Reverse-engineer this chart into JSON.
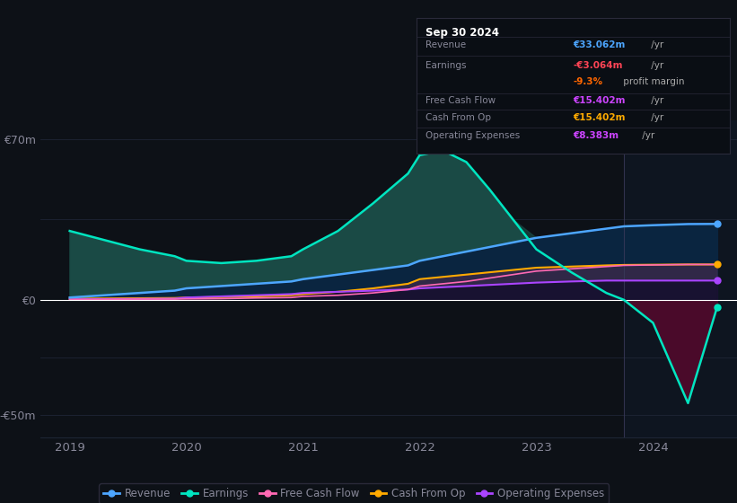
{
  "background_color": "#0d1117",
  "years": [
    2019.0,
    2019.3,
    2019.6,
    2019.9,
    2020.0,
    2020.3,
    2020.6,
    2020.9,
    2021.0,
    2021.3,
    2021.6,
    2021.9,
    2022.0,
    2022.2,
    2022.4,
    2022.6,
    2022.8,
    2023.0,
    2023.3,
    2023.6,
    2023.75,
    2024.0,
    2024.3,
    2024.55
  ],
  "revenue": [
    1,
    2,
    3,
    4,
    5,
    6,
    7,
    8,
    9,
    11,
    13,
    15,
    17,
    19,
    21,
    23,
    25,
    27,
    29,
    31,
    32,
    32.5,
    33.0,
    33.062
  ],
  "earnings": [
    30,
    26,
    22,
    19,
    17,
    16,
    17,
    19,
    22,
    30,
    42,
    55,
    63,
    65,
    60,
    48,
    35,
    22,
    12,
    3,
    0,
    -10,
    -45,
    -3.064
  ],
  "cash_from_op": [
    0.5,
    0.6,
    0.7,
    0.8,
    1.0,
    1.2,
    1.5,
    2.0,
    2.5,
    3.5,
    5,
    7,
    9,
    10,
    11,
    12,
    13,
    14,
    14.5,
    15,
    15.2,
    15.3,
    15.402,
    15.402
  ],
  "op_expenses": [
    0.2,
    0.3,
    0.4,
    0.5,
    1.0,
    1.5,
    2.0,
    2.5,
    3.0,
    3.5,
    4.0,
    4.5,
    5.0,
    5.5,
    6.0,
    6.5,
    7.0,
    7.5,
    8.0,
    8.383,
    8.383,
    8.383,
    8.383,
    8.383
  ],
  "free_cash_flow": [
    0.1,
    0.2,
    0.3,
    0.3,
    0.4,
    0.5,
    0.8,
    1.0,
    1.5,
    2.0,
    3.0,
    4.5,
    6.0,
    7.0,
    8.0,
    9.5,
    11.0,
    12.5,
    13.5,
    14.5,
    15.0,
    15.2,
    15.402,
    15.402
  ],
  "revenue_color": "#4da6ff",
  "earnings_color": "#00e5c0",
  "earnings_fill_pos": "#1a4a45",
  "earnings_fill_neg": "#4a0a2a",
  "revenue_fill": "#0a2540",
  "between_fill": "#0d2035",
  "cash_from_op_color": "#ffaa00",
  "op_expenses_color": "#aa44ff",
  "free_cash_flow_color": "#ff69b4",
  "grid_color": "#1e2535",
  "text_color": "#888899",
  "divider_x": 2023.75,
  "xlim_left": 2018.75,
  "xlim_right": 2024.72,
  "ylim": [
    -60,
    78
  ],
  "ytick_positions": [
    -50,
    0,
    70
  ],
  "ytick_labels": [
    "-€50m",
    "€0",
    "€70m"
  ],
  "xtick_positions": [
    2019,
    2020,
    2021,
    2022,
    2023,
    2024
  ],
  "xtick_labels": [
    "2019",
    "2020",
    "2021",
    "2022",
    "2023",
    "2024"
  ],
  "info_box": {
    "title": "Sep 30 2024",
    "rows": [
      {
        "label": "Revenue",
        "value": "€33.062m",
        "suffix": " /yr",
        "value_color": "#4da6ff",
        "label_color": "#888899"
      },
      {
        "label": "Earnings",
        "value": "-€3.064m",
        "suffix": " /yr",
        "value_color": "#ff4455",
        "label_color": "#888899"
      },
      {
        "label": "",
        "value": "-9.3%",
        "suffix": " profit margin",
        "value_color": "#ff6600",
        "label_color": "#888899"
      },
      {
        "label": "Free Cash Flow",
        "value": "€15.402m",
        "suffix": " /yr",
        "value_color": "#cc44ff",
        "label_color": "#888899"
      },
      {
        "label": "Cash From Op",
        "value": "€15.402m",
        "suffix": " /yr",
        "value_color": "#ffaa00",
        "label_color": "#888899"
      },
      {
        "label": "Operating Expenses",
        "value": "€8.383m",
        "suffix": " /yr",
        "value_color": "#cc44ff",
        "label_color": "#888899"
      }
    ]
  },
  "legend": [
    {
      "label": "Revenue",
      "color": "#4da6ff"
    },
    {
      "label": "Earnings",
      "color": "#00e5c0"
    },
    {
      "label": "Free Cash Flow",
      "color": "#ff69b4"
    },
    {
      "label": "Cash From Op",
      "color": "#ffaa00"
    },
    {
      "label": "Operating Expenses",
      "color": "#aa44ff"
    }
  ]
}
